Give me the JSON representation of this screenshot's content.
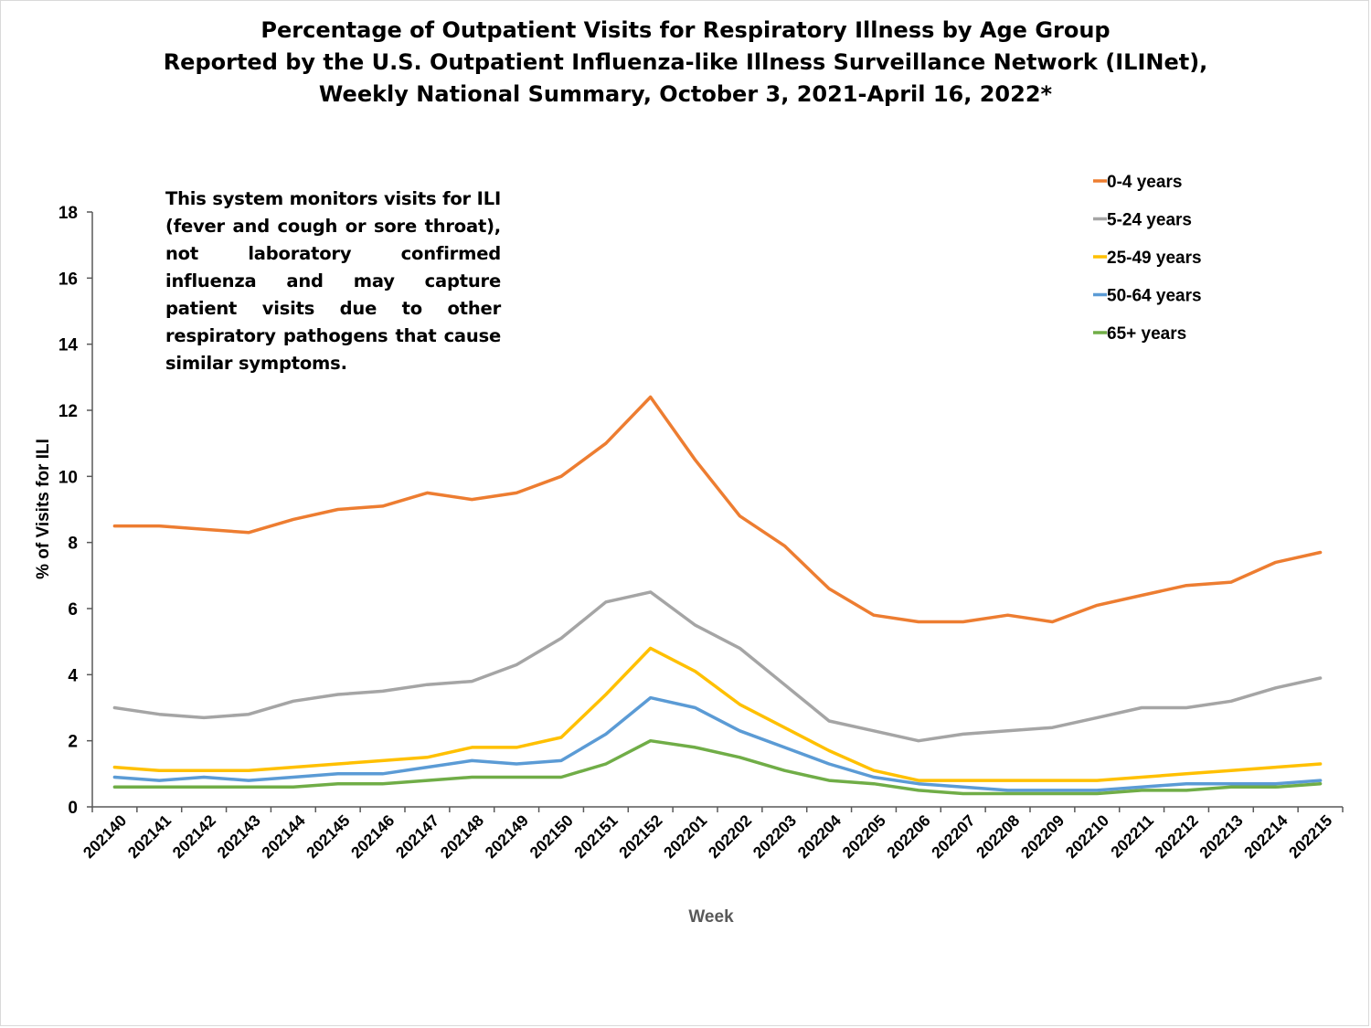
{
  "title_lines": [
    "Percentage of Outpatient Visits for Respiratory Illness by Age Group",
    "Reported by the U.S. Outpatient Influenza-like Illness Surveillance Network (ILINet),",
    "Weekly National Summary, October 3, 2021-April 16, 2022*"
  ],
  "note_text": "This system monitors visits for ILI (fever and cough or sore throat), not laboratory confirmed influenza and may capture patient visits due to other respiratory pathogens that cause similar symptoms.",
  "chart_data": {
    "type": "line",
    "title": "Percentage of Outpatient Visits for Respiratory Illness by Age Group Reported by the U.S. Outpatient Influenza-like Illness Surveillance Network (ILINet), Weekly National Summary, October 3, 2021-April 16, 2022*",
    "xlabel": "Week",
    "ylabel": "% of Visits for ILI",
    "ylim": [
      0,
      18
    ],
    "yticks": [
      "0",
      "2",
      "4",
      "6",
      "8",
      "10",
      "12",
      "14",
      "16",
      "18"
    ],
    "grid": false,
    "legend_position": "top-right",
    "categories": [
      "202140",
      "202141",
      "202142",
      "202143",
      "202144",
      "202145",
      "202146",
      "202147",
      "202148",
      "202149",
      "202150",
      "202151",
      "202152",
      "202201",
      "202202",
      "202203",
      "202204",
      "202205",
      "202206",
      "202207",
      "202208",
      "202209",
      "202210",
      "202211",
      "202212",
      "202213",
      "202214",
      "202215"
    ],
    "series": [
      {
        "name": "0-4 years",
        "color": "#ED7D31",
        "values": [
          8.5,
          8.5,
          8.4,
          8.3,
          8.7,
          9.0,
          9.1,
          9.5,
          9.3,
          9.5,
          10.0,
          11.0,
          12.4,
          10.5,
          8.8,
          7.9,
          6.6,
          5.8,
          5.6,
          5.6,
          5.8,
          5.6,
          6.1,
          6.4,
          6.7,
          6.8,
          7.4,
          7.7
        ]
      },
      {
        "name": "5-24 years",
        "color": "#A5A5A5",
        "values": [
          3.0,
          2.8,
          2.7,
          2.8,
          3.2,
          3.4,
          3.5,
          3.7,
          3.8,
          4.3,
          5.1,
          6.2,
          6.5,
          5.5,
          4.8,
          3.7,
          2.6,
          2.3,
          2.0,
          2.2,
          2.3,
          2.4,
          2.7,
          3.0,
          3.0,
          3.2,
          3.6,
          3.9
        ]
      },
      {
        "name": "25-49 years",
        "color": "#FFC000",
        "values": [
          1.2,
          1.1,
          1.1,
          1.1,
          1.2,
          1.3,
          1.4,
          1.5,
          1.8,
          1.8,
          2.1,
          3.4,
          4.8,
          4.1,
          3.1,
          2.4,
          1.7,
          1.1,
          0.8,
          0.8,
          0.8,
          0.8,
          0.8,
          0.9,
          1.0,
          1.1,
          1.2,
          1.3
        ]
      },
      {
        "name": "50-64 years",
        "color": "#5B9BD5",
        "values": [
          0.9,
          0.8,
          0.9,
          0.8,
          0.9,
          1.0,
          1.0,
          1.2,
          1.4,
          1.3,
          1.4,
          2.2,
          3.3,
          3.0,
          2.3,
          1.8,
          1.3,
          0.9,
          0.7,
          0.6,
          0.5,
          0.5,
          0.5,
          0.6,
          0.7,
          0.7,
          0.7,
          0.8
        ]
      },
      {
        "name": "65+ years",
        "color": "#70AD47",
        "values": [
          0.6,
          0.6,
          0.6,
          0.6,
          0.6,
          0.7,
          0.7,
          0.8,
          0.9,
          0.9,
          0.9,
          1.3,
          2.0,
          1.8,
          1.5,
          1.1,
          0.8,
          0.7,
          0.5,
          0.4,
          0.4,
          0.4,
          0.4,
          0.5,
          0.5,
          0.6,
          0.6,
          0.7
        ]
      }
    ]
  }
}
